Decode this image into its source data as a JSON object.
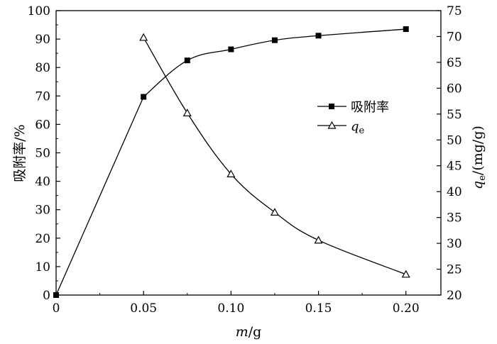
{
  "chart_data": {
    "type": "line",
    "x": [
      0,
      0.05,
      0.075,
      0.1,
      0.125,
      0.15,
      0.2
    ],
    "xlabel": {
      "var": "m",
      "unit": "/g"
    },
    "xlim": [
      0,
      0.22
    ],
    "xticks": [
      "0",
      "0.05",
      "0.10",
      "0.15",
      "0.20"
    ],
    "xtick_values": [
      0,
      0.05,
      0.1,
      0.15,
      0.2
    ],
    "y_left": {
      "label": "吸附率/%",
      "lim": [
        0,
        100
      ],
      "ticks": [
        "0",
        "10",
        "20",
        "30",
        "40",
        "50",
        "60",
        "70",
        "80",
        "90",
        "100"
      ]
    },
    "y_right": {
      "label": {
        "var": "q",
        "sub": "e",
        "unit": "/(mg/g)"
      },
      "lim": [
        20,
        75
      ],
      "ticks": [
        "20",
        "25",
        "30",
        "35",
        "40",
        "45",
        "50",
        "55",
        "60",
        "65",
        "70",
        "75"
      ]
    },
    "series": [
      {
        "name": "吸附率",
        "axis": "left",
        "marker": "filled-square",
        "x": [
          0,
          0.05,
          0.075,
          0.1,
          0.125,
          0.15,
          0.2
        ],
        "values": [
          0,
          69.7,
          82.5,
          86.4,
          89.6,
          91.2,
          93.5
        ]
      },
      {
        "name": {
          "var": "q",
          "sub": "e"
        },
        "axis": "right",
        "marker": "open-triangle",
        "x": [
          0.05,
          0.075,
          0.1,
          0.125,
          0.15,
          0.2
        ],
        "values": [
          69.8,
          55.2,
          43.4,
          36.0,
          30.6,
          24.0
        ]
      }
    ],
    "legend_position": "right-middle",
    "grid": false
  }
}
